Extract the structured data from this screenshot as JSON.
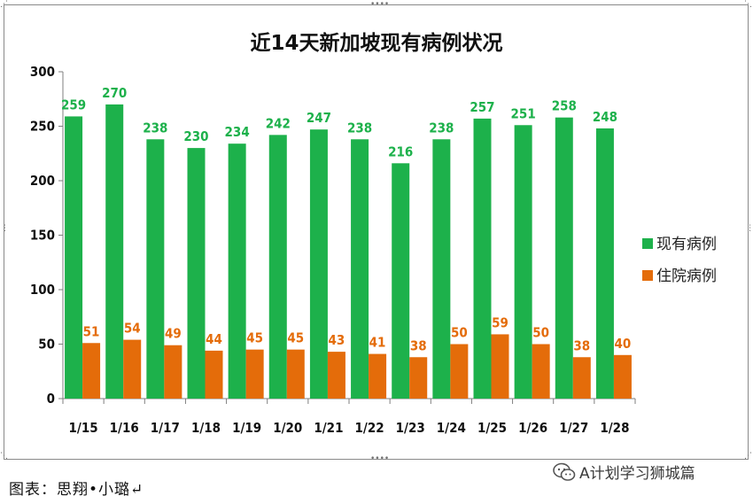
{
  "chart_data": {
    "type": "bar",
    "title": "近14天新加坡现有病例状况",
    "categories": [
      "1/15",
      "1/16",
      "1/17",
      "1/18",
      "1/19",
      "1/20",
      "1/21",
      "1/22",
      "1/23",
      "1/24",
      "1/25",
      "1/26",
      "1/27",
      "1/28"
    ],
    "series": [
      {
        "name": "现有病例",
        "color": "#1db14b",
        "values": [
          259,
          270,
          238,
          230,
          234,
          242,
          247,
          238,
          216,
          238,
          257,
          251,
          258,
          248
        ]
      },
      {
        "name": "住院病例",
        "color": "#e46c0a",
        "values": [
          51,
          54,
          49,
          44,
          45,
          45,
          43,
          41,
          38,
          50,
          59,
          50,
          38,
          40
        ]
      }
    ],
    "ylim": [
      0,
      300
    ],
    "yticks": [
      0,
      50,
      100,
      150,
      200,
      250,
      300
    ],
    "grid": false,
    "legend": "right"
  },
  "caption": "图表：思翔•小璐↵",
  "watermark": "A计划学习狮城篇"
}
